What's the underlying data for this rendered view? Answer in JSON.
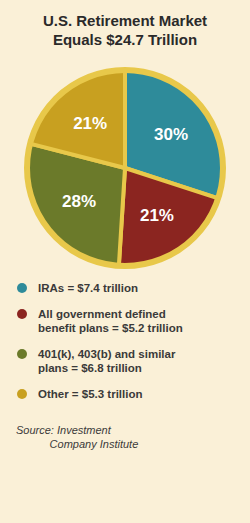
{
  "chart_data": {
    "type": "pie",
    "title": "U.S. Retirement Market\nEquals $24.7 Trillion",
    "categories": [
      "IRAs = $7.4 trillion",
      "All government defined\nbenefit plans = $5.2 trillion",
      "401(k), 403(b) and similar\nplans = $6.8 trillion",
      "Other = $5.3 trillion"
    ],
    "values": [
      30,
      21,
      28,
      21
    ],
    "value_labels": [
      "30%",
      "21%",
      "28%",
      "21%"
    ],
    "colors": [
      "#2E8B9A",
      "#8B2520",
      "#6B7A2A",
      "#C8A020"
    ],
    "data_labels": true,
    "legend": "bottom",
    "annotations": [
      "Source: Investment\n           Company Institute"
    ]
  }
}
